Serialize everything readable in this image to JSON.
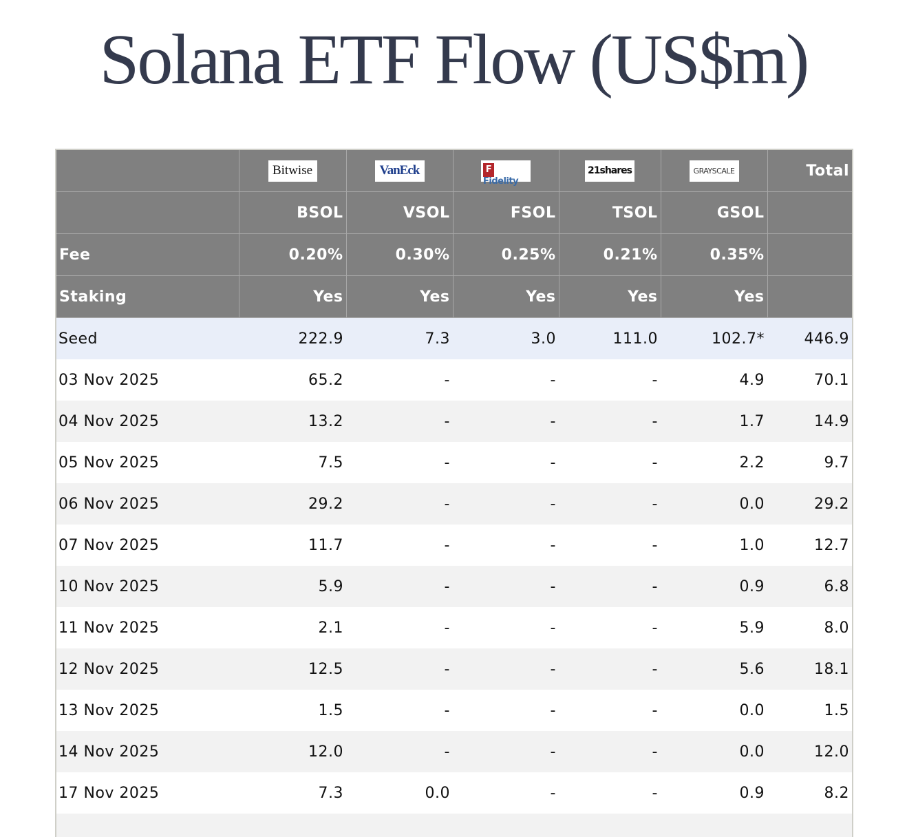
{
  "title": "Solana ETF Flow (US$m)",
  "logos": {
    "bitwise": "Bitwise",
    "vaneck": "VanEck",
    "fidelity": "Fidelity",
    "fidelity_mark": "F",
    "twentyone": "21shares",
    "grayscale": "GRAYSCALE"
  },
  "header": {
    "total_label": "Total",
    "tickers": [
      "BSOL",
      "VSOL",
      "FSOL",
      "TSOL",
      "GSOL"
    ],
    "fee_label": "Fee",
    "fees": [
      "0.20%",
      "0.30%",
      "0.25%",
      "0.21%",
      "0.35%"
    ],
    "staking_label": "Staking",
    "staking": [
      "Yes",
      "Yes",
      "Yes",
      "Yes",
      "Yes"
    ]
  },
  "rows": [
    {
      "label": "Seed",
      "values": [
        "222.9",
        "7.3",
        "3.0",
        "111.0",
        "102.7*",
        "446.9"
      ]
    },
    {
      "label": "03 Nov 2025",
      "values": [
        "65.2",
        "-",
        "-",
        "-",
        "4.9",
        "70.1"
      ]
    },
    {
      "label": "04 Nov 2025",
      "values": [
        "13.2",
        "-",
        "-",
        "-",
        "1.7",
        "14.9"
      ]
    },
    {
      "label": "05 Nov 2025",
      "values": [
        "7.5",
        "-",
        "-",
        "-",
        "2.2",
        "9.7"
      ]
    },
    {
      "label": "06 Nov 2025",
      "values": [
        "29.2",
        "-",
        "-",
        "-",
        "0.0",
        "29.2"
      ]
    },
    {
      "label": "07 Nov 2025",
      "values": [
        "11.7",
        "-",
        "-",
        "-",
        "1.0",
        "12.7"
      ]
    },
    {
      "label": "10 Nov 2025",
      "values": [
        "5.9",
        "-",
        "-",
        "-",
        "0.9",
        "6.8"
      ]
    },
    {
      "label": "11 Nov 2025",
      "values": [
        "2.1",
        "-",
        "-",
        "-",
        "5.9",
        "8.0"
      ]
    },
    {
      "label": "12 Nov 2025",
      "values": [
        "12.5",
        "-",
        "-",
        "-",
        "5.6",
        "18.1"
      ]
    },
    {
      "label": "13 Nov 2025",
      "values": [
        "1.5",
        "-",
        "-",
        "-",
        "0.0",
        "1.5"
      ]
    },
    {
      "label": "14 Nov 2025",
      "values": [
        "12.0",
        "-",
        "-",
        "-",
        "0.0",
        "12.0"
      ]
    },
    {
      "label": "17 Nov 2025",
      "values": [
        "7.3",
        "0.0",
        "-",
        "-",
        "0.9",
        "8.2"
      ]
    },
    {
      "label": "",
      "values": [
        "",
        "",
        "",
        "",
        "",
        ""
      ]
    }
  ]
}
